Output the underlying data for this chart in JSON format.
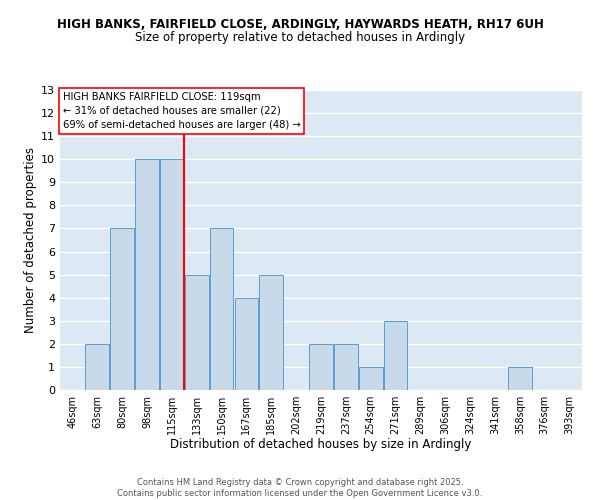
{
  "title1": "HIGH BANKS, FAIRFIELD CLOSE, ARDINGLY, HAYWARDS HEATH, RH17 6UH",
  "title2": "Size of property relative to detached houses in Ardingly",
  "xlabel": "Distribution of detached houses by size in Ardingly",
  "ylabel": "Number of detached properties",
  "categories": [
    "46sqm",
    "63sqm",
    "80sqm",
    "98sqm",
    "115sqm",
    "133sqm",
    "150sqm",
    "167sqm",
    "185sqm",
    "202sqm",
    "219sqm",
    "237sqm",
    "254sqm",
    "271sqm",
    "289sqm",
    "306sqm",
    "324sqm",
    "341sqm",
    "358sqm",
    "376sqm",
    "393sqm"
  ],
  "values": [
    0,
    2,
    7,
    10,
    10,
    5,
    7,
    4,
    5,
    0,
    2,
    2,
    1,
    3,
    0,
    0,
    0,
    0,
    1,
    0,
    0
  ],
  "bar_color": "#c8d9ea",
  "bar_edge_color": "#5b9bd5",
  "grid_color": "#ffffff",
  "bg_color": "#dce9f5",
  "ref_line_x": 4.5,
  "ref_line_color": "red",
  "annotation_text": "HIGH BANKS FAIRFIELD CLOSE: 119sqm\n← 31% of detached houses are smaller (22)\n69% of semi-detached houses are larger (48) →",
  "ylim": [
    0,
    13
  ],
  "yticks": [
    0,
    1,
    2,
    3,
    4,
    5,
    6,
    7,
    8,
    9,
    10,
    11,
    12,
    13
  ],
  "footer1": "Contains HM Land Registry data © Crown copyright and database right 2025.",
  "footer2": "Contains public sector information licensed under the Open Government Licence v3.0."
}
